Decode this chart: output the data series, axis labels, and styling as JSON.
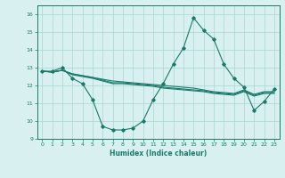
{
  "title": "",
  "xlabel": "Humidex (Indice chaleur)",
  "ylabel": "",
  "x": [
    0,
    1,
    2,
    3,
    4,
    5,
    6,
    7,
    8,
    9,
    10,
    11,
    12,
    13,
    14,
    15,
    16,
    17,
    18,
    19,
    20,
    21,
    22,
    23
  ],
  "line1": [
    12.8,
    12.8,
    13.0,
    12.4,
    12.1,
    11.2,
    9.7,
    9.5,
    9.5,
    9.6,
    10.0,
    11.2,
    12.1,
    13.2,
    14.1,
    15.8,
    15.1,
    14.6,
    13.2,
    12.4,
    11.9,
    10.6,
    11.1,
    11.8
  ],
  "line2": [
    12.8,
    12.75,
    12.85,
    12.65,
    12.55,
    12.45,
    12.35,
    12.25,
    12.2,
    12.15,
    12.1,
    12.05,
    12.0,
    11.95,
    11.9,
    11.85,
    11.75,
    11.65,
    11.6,
    11.55,
    11.75,
    11.5,
    11.65,
    11.65
  ],
  "line3": [
    12.8,
    12.75,
    12.85,
    12.65,
    12.55,
    12.45,
    12.3,
    12.15,
    12.15,
    12.1,
    12.05,
    12.0,
    11.9,
    11.85,
    11.8,
    11.75,
    11.7,
    11.6,
    11.55,
    11.5,
    11.7,
    11.45,
    11.6,
    11.6
  ],
  "line4": [
    12.8,
    12.75,
    12.85,
    12.6,
    12.5,
    12.4,
    12.25,
    12.1,
    12.1,
    12.05,
    12.0,
    11.95,
    11.85,
    11.8,
    11.75,
    11.7,
    11.65,
    11.55,
    11.5,
    11.45,
    11.65,
    11.4,
    11.55,
    11.55
  ],
  "line_color": "#1a7a6a",
  "bg_color": "#d8f0f0",
  "grid_color": "#aad4d4",
  "ylim": [
    9,
    16.5
  ],
  "yticks": [
    9,
    10,
    11,
    12,
    13,
    14,
    15,
    16
  ],
  "xticks": [
    0,
    1,
    2,
    3,
    4,
    5,
    6,
    7,
    8,
    9,
    10,
    11,
    12,
    13,
    14,
    15,
    16,
    17,
    18,
    19,
    20,
    21,
    22,
    23
  ],
  "marker": "D",
  "marker_size": 1.8,
  "linewidth": 0.8
}
